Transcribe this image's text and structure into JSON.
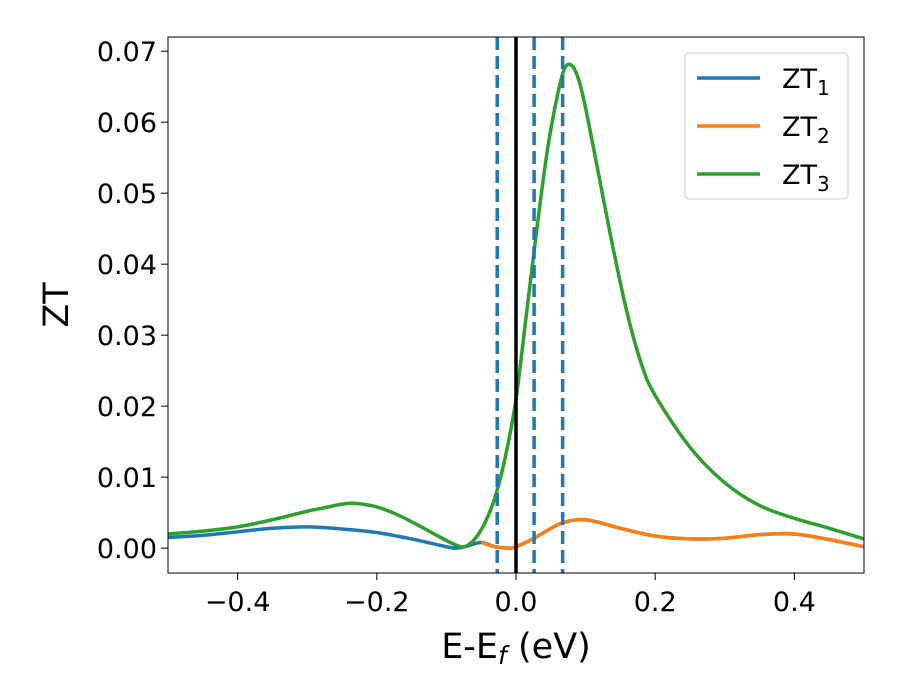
{
  "chart_data": {
    "type": "line",
    "xlabel": "E-E",
    "xlabel_subscript": "f",
    "xlabel_unit": "(eV)",
    "ylabel": "ZT",
    "xlim": [
      -0.5,
      0.5
    ],
    "ylim": [
      -0.0035,
      0.072
    ],
    "xticks": [
      -0.4,
      -0.2,
      0.0,
      0.2,
      0.4
    ],
    "xtick_labels": [
      "−0.4",
      "−0.2",
      "0.0",
      "0.2",
      "0.4"
    ],
    "yticks": [
      0.0,
      0.01,
      0.02,
      0.03,
      0.04,
      0.05,
      0.06,
      0.07
    ],
    "ytick_labels": [
      "0.00",
      "0.01",
      "0.02",
      "0.03",
      "0.04",
      "0.05",
      "0.06",
      "0.07"
    ],
    "grid": false,
    "legend_position": "top-right",
    "series": [
      {
        "name": "ZT",
        "subscript": "1",
        "color": "#1f77b4",
        "x": [
          -0.5,
          -0.45,
          -0.4,
          -0.35,
          -0.3,
          -0.25,
          -0.2,
          -0.15,
          -0.1,
          -0.085,
          -0.07,
          -0.05,
          -0.03,
          -0.01,
          0.0,
          0.02,
          0.04,
          0.06,
          0.08,
          0.1,
          0.12,
          0.15,
          0.2,
          0.25,
          0.3,
          0.35,
          0.4,
          0.45,
          0.5
        ],
        "y": [
          0.0015,
          0.0018,
          0.0023,
          0.0028,
          0.003,
          0.0027,
          0.0022,
          0.0013,
          0.0002,
          0.0,
          0.0003,
          0.0008,
          0.0002,
          0.0,
          0.0002,
          0.0011,
          0.0022,
          0.0033,
          0.0039,
          0.004,
          0.0036,
          0.0028,
          0.0017,
          0.0013,
          0.0014,
          0.0019,
          0.002,
          0.0012,
          0.0002
        ]
      },
      {
        "name": "ZT",
        "subscript": "2",
        "color": "#ff7f0e",
        "x": [
          -0.05,
          -0.03,
          -0.01,
          0.0,
          0.02,
          0.04,
          0.06,
          0.08,
          0.1,
          0.12,
          0.15,
          0.2,
          0.25,
          0.3,
          0.35,
          0.4,
          0.45,
          0.5
        ],
        "y": [
          0.0008,
          0.0002,
          0.0,
          0.0002,
          0.0011,
          0.0022,
          0.0033,
          0.0039,
          0.004,
          0.0036,
          0.0028,
          0.0017,
          0.0013,
          0.0014,
          0.0019,
          0.002,
          0.0012,
          0.0002
        ]
      },
      {
        "name": "ZT",
        "subscript": "3",
        "color": "#2ca02c",
        "x": [
          -0.5,
          -0.45,
          -0.4,
          -0.35,
          -0.3,
          -0.27,
          -0.25,
          -0.23,
          -0.2,
          -0.17,
          -0.14,
          -0.11,
          -0.09,
          -0.075,
          -0.06,
          -0.045,
          -0.03,
          -0.015,
          0.0,
          0.015,
          0.03,
          0.045,
          0.06,
          0.07,
          0.08,
          0.09,
          0.1,
          0.12,
          0.14,
          0.16,
          0.18,
          0.2,
          0.25,
          0.3,
          0.35,
          0.4,
          0.45,
          0.5
        ],
        "y": [
          0.002,
          0.0024,
          0.003,
          0.004,
          0.0052,
          0.0058,
          0.0062,
          0.0063,
          0.0058,
          0.0047,
          0.0032,
          0.0016,
          0.0006,
          0.0002,
          0.0012,
          0.0035,
          0.0072,
          0.013,
          0.021,
          0.033,
          0.045,
          0.056,
          0.064,
          0.0676,
          0.068,
          0.066,
          0.062,
          0.052,
          0.042,
          0.033,
          0.026,
          0.0215,
          0.0142,
          0.0092,
          0.006,
          0.0042,
          0.0028,
          0.0013
        ]
      }
    ],
    "vertical_lines": [
      {
        "x": -0.027,
        "style": "dashed",
        "color": "#1f77b4"
      },
      {
        "x": 0.0,
        "style": "solid",
        "color": "#000000"
      },
      {
        "x": 0.026,
        "style": "dashed",
        "color": "#1f77b4"
      },
      {
        "x": 0.067,
        "style": "dashed",
        "color": "#1f77b4"
      }
    ]
  }
}
